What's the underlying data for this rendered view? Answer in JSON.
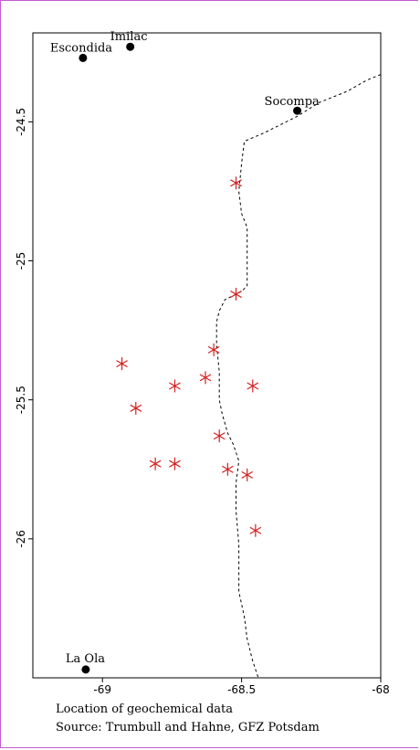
{
  "chart_data": {
    "type": "scatter",
    "xlim": [
      -69.25,
      -68.0
    ],
    "ylim": [
      -26.5,
      -24.18
    ],
    "xticks": [
      {
        "value": -69,
        "label": "-69"
      },
      {
        "value": -68.5,
        "label": "-68.5"
      },
      {
        "value": -68,
        "label": "-68"
      }
    ],
    "yticks": [
      {
        "value": -24.5,
        "label": "-24.5"
      },
      {
        "value": -25,
        "label": "-25"
      },
      {
        "value": -25.5,
        "label": "-25.5"
      },
      {
        "value": -26,
        "label": "-26"
      }
    ],
    "places": [
      {
        "name": "Escondida",
        "x": -69.07,
        "y": -24.27,
        "label_dx": -36,
        "label_dy": -7
      },
      {
        "name": "Imilac",
        "x": -68.9,
        "y": -24.23,
        "label_dx": -22,
        "label_dy": -7
      },
      {
        "name": "Socompa",
        "x": -68.3,
        "y": -24.46,
        "label_dx": -36,
        "label_dy": -6
      },
      {
        "name": "La Ola",
        "x": -69.06,
        "y": -26.47,
        "label_dx": -22,
        "label_dy": -8
      }
    ],
    "samples": [
      {
        "x": -68.52,
        "y": -24.72
      },
      {
        "x": -68.52,
        "y": -25.12
      },
      {
        "x": -68.6,
        "y": -25.32
      },
      {
        "x": -68.93,
        "y": -25.37
      },
      {
        "x": -68.63,
        "y": -25.42
      },
      {
        "x": -68.74,
        "y": -25.45
      },
      {
        "x": -68.46,
        "y": -25.45
      },
      {
        "x": -68.88,
        "y": -25.53
      },
      {
        "x": -68.58,
        "y": -25.63
      },
      {
        "x": -68.81,
        "y": -25.73
      },
      {
        "x": -68.74,
        "y": -25.73
      },
      {
        "x": -68.55,
        "y": -25.75
      },
      {
        "x": -68.48,
        "y": -25.77
      },
      {
        "x": -68.45,
        "y": -25.97
      }
    ],
    "border": [
      [
        -68.0,
        -24.33
      ],
      [
        -68.05,
        -24.35
      ],
      [
        -68.12,
        -24.39
      ],
      [
        -68.17,
        -24.41
      ],
      [
        -68.22,
        -24.43
      ],
      [
        -68.3,
        -24.48
      ],
      [
        -68.42,
        -24.54
      ],
      [
        -68.49,
        -24.57
      ],
      [
        -68.5,
        -24.65
      ],
      [
        -68.51,
        -24.75
      ],
      [
        -68.5,
        -24.83
      ],
      [
        -68.48,
        -24.88
      ],
      [
        -68.48,
        -25.0
      ],
      [
        -68.48,
        -25.09
      ],
      [
        -68.5,
        -25.11
      ],
      [
        -68.56,
        -25.14
      ],
      [
        -68.58,
        -25.18
      ],
      [
        -68.59,
        -25.22
      ],
      [
        -68.59,
        -25.3
      ],
      [
        -68.58,
        -25.4
      ],
      [
        -68.58,
        -25.5
      ],
      [
        -68.57,
        -25.55
      ],
      [
        -68.55,
        -25.62
      ],
      [
        -68.53,
        -25.66
      ],
      [
        -68.51,
        -25.72
      ],
      [
        -68.52,
        -25.8
      ],
      [
        -68.52,
        -25.9
      ],
      [
        -68.51,
        -26.02
      ],
      [
        -68.51,
        -26.12
      ],
      [
        -68.51,
        -26.19
      ],
      [
        -68.49,
        -26.28
      ],
      [
        -68.48,
        -26.36
      ],
      [
        -68.46,
        -26.44
      ],
      [
        -68.44,
        -26.5
      ]
    ],
    "colors": {
      "sample": "#d42020",
      "place": "#000000",
      "border": "#000000"
    }
  },
  "caption": {
    "line1": "Location of geochemical data",
    "line2": "Source: Trumbull and Hahne, GFZ Potsdam"
  }
}
